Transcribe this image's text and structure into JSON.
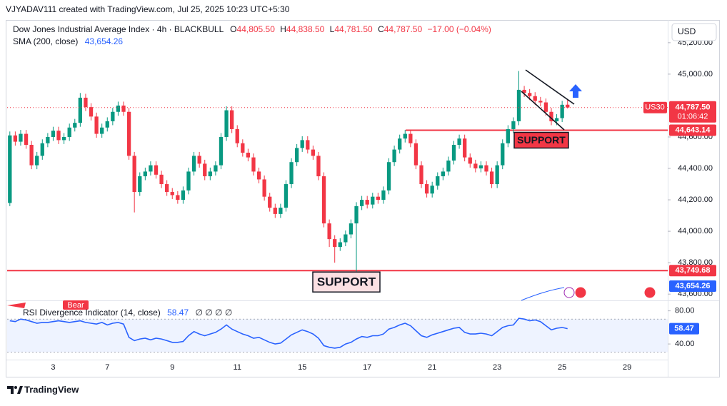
{
  "header": {
    "attribution": "VJYADAV111 created with TradingView.com, Jul 25, 2025 10:23 UTC+5:30"
  },
  "chart_data": {
    "type": "candlestick",
    "title": "Dow Jones Industrial Average Index · 4h · BLACKBULL",
    "legend": {
      "open_label": "O",
      "open": "44,805.50",
      "high_label": "H",
      "high": "44,838.50",
      "low_label": "L",
      "low": "44,781.50",
      "close_label": "C",
      "close": "44,787.50",
      "change": "−17.00 (−0.04%)"
    },
    "sma": {
      "name": "SMA (200, close)",
      "value_label": "43,654.26",
      "color": "#2962ff"
    },
    "categories": [
      null,
      null,
      null,
      null,
      null,
      null,
      null,
      null,
      "3",
      null,
      null,
      null,
      null,
      null,
      null,
      null,
      null,
      null,
      "7",
      null,
      null,
      null,
      null,
      null,
      null,
      null,
      null,
      null,
      null,
      null,
      "9",
      null,
      null,
      null,
      null,
      null,
      null,
      null,
      null,
      null,
      null,
      null,
      "11",
      null,
      null,
      null,
      null,
      null,
      null,
      null,
      null,
      null,
      null,
      null,
      "15",
      null,
      null,
      null,
      null,
      null,
      null,
      null,
      null,
      null,
      null,
      null,
      "17",
      null,
      null,
      null,
      null,
      null,
      null,
      null,
      null,
      null,
      null,
      null,
      "21",
      null,
      null,
      null,
      null,
      null,
      null,
      null,
      null,
      null,
      null,
      null,
      "23",
      null,
      null,
      null,
      null,
      null,
      null,
      null,
      null,
      null,
      null,
      null,
      "25",
      null,
      null,
      null,
      null,
      null,
      null,
      null,
      null,
      null,
      null,
      null,
      "29",
      null,
      null,
      null,
      null,
      null,
      null,
      null
    ],
    "open": [
      44180,
      44610,
      44570,
      44620,
      44550,
      44420,
      44480,
      44560,
      44600,
      44640,
      44580,
      44600,
      44660,
      44690,
      44850,
      44790,
      44730,
      44620,
      44660,
      44700,
      44760,
      44800,
      44760,
      44480,
      44250,
      44350,
      44380,
      44420,
      44360,
      44300,
      44250,
      44230,
      44200,
      44260,
      44380,
      44480,
      44430,
      44350,
      44380,
      44420,
      44600,
      44770,
      44650,
      44560,
      44500,
      44470,
      44380,
      44330,
      44220,
      44150,
      44110,
      44150,
      44300,
      44440,
      44530,
      44580,
      44520,
      44480,
      44350,
      44050,
      43950,
      43900,
      43930,
      43980,
      44050,
      44160,
      44200,
      44170,
      44220,
      44200,
      44260,
      44440,
      44520,
      44590,
      44620,
      44560,
      44420,
      44300,
      44240,
      44290,
      44350,
      44380,
      44450,
      44550,
      44590,
      44470,
      44430,
      44400,
      44420,
      44380,
      44300,
      44420,
      44560,
      44650,
      44700,
      44900,
      44880,
      44860,
      44830,
      44820,
      44760,
      44700,
      44720,
      44805.5,
      null,
      null,
      null,
      null,
      null,
      null,
      null,
      null,
      null,
      null,
      null,
      null,
      null,
      null,
      null,
      null,
      null,
      null
    ],
    "high": [
      44635,
      44635,
      44645,
      44645,
      44575,
      44505,
      44585,
      44625,
      44665,
      44665,
      44625,
      44685,
      44715,
      44880,
      44875,
      44815,
      44755,
      44685,
      44725,
      44785,
      44825,
      44825,
      44785,
      44505,
      44375,
      44405,
      44445,
      44445,
      44385,
      44325,
      44275,
      44255,
      44285,
      44405,
      44505,
      44505,
      44455,
      44405,
      44445,
      44625,
      44795,
      44795,
      44675,
      44585,
      44525,
      44495,
      44405,
      44355,
      44245,
      44175,
      44175,
      44325,
      44465,
      44555,
      44605,
      44605,
      44545,
      44505,
      44375,
      44075,
      43975,
      43955,
      44005,
      44075,
      44185,
      44225,
      44225,
      44245,
      44245,
      44285,
      44465,
      44545,
      44615,
      44645,
      44645,
      44585,
      44445,
      44325,
      44315,
      44375,
      44405,
      44475,
      44575,
      44615,
      44615,
      44495,
      44455,
      44445,
      44445,
      44405,
      44445,
      44585,
      44675,
      44725,
      45020,
      44925,
      44905,
      44885,
      44855,
      44845,
      44785,
      44745,
      44830,
      44838.5,
      null,
      null,
      null,
      null,
      null,
      null,
      null,
      null,
      null,
      null,
      null,
      null,
      null,
      null,
      null,
      null,
      null,
      null
    ],
    "low": [
      44160,
      44545,
      44545,
      44525,
      44395,
      44395,
      44455,
      44535,
      44575,
      44555,
      44555,
      44575,
      44635,
      44665,
      44765,
      44705,
      44595,
      44595,
      44635,
      44675,
      44735,
      44735,
      44455,
      44120,
      44225,
      44325,
      44355,
      44335,
      44275,
      44225,
      44205,
      44175,
      44175,
      44235,
      44355,
      44405,
      44325,
      44325,
      44355,
      44395,
      44575,
      44625,
      44535,
      44475,
      44445,
      44355,
      44305,
      44195,
      44125,
      44085,
      44085,
      44125,
      44275,
      44415,
      44505,
      44495,
      44455,
      44325,
      44025,
      43900,
      43800,
      43875,
      43905,
      43955,
      43745,
      44135,
      44145,
      44145,
      44175,
      44175,
      44235,
      44415,
      44495,
      44565,
      44535,
      44395,
      44275,
      44215,
      44215,
      44265,
      44325,
      44355,
      44425,
      44525,
      44445,
      44405,
      44375,
      44375,
      44355,
      44275,
      44275,
      44395,
      44535,
      44625,
      44675,
      44855,
      44835,
      44805,
      44795,
      44735,
      44675,
      44675,
      44695,
      44781.5,
      null,
      null,
      null,
      null,
      null,
      null,
      null,
      null,
      null,
      null,
      null,
      null,
      null,
      null,
      null,
      null,
      null,
      null
    ],
    "close": [
      44610,
      44570,
      44620,
      44550,
      44420,
      44480,
      44560,
      44600,
      44640,
      44580,
      44600,
      44660,
      44690,
      44850,
      44790,
      44730,
      44620,
      44660,
      44700,
      44760,
      44800,
      44760,
      44480,
      44250,
      44350,
      44380,
      44420,
      44360,
      44300,
      44250,
      44230,
      44200,
      44260,
      44380,
      44480,
      44430,
      44350,
      44380,
      44420,
      44600,
      44770,
      44650,
      44560,
      44500,
      44470,
      44380,
      44330,
      44220,
      44150,
      44110,
      44150,
      44300,
      44440,
      44530,
      44580,
      44520,
      44480,
      44350,
      44050,
      43950,
      43900,
      43930,
      43980,
      44050,
      44160,
      44200,
      44170,
      44220,
      44200,
      44260,
      44440,
      44520,
      44590,
      44620,
      44560,
      44420,
      44300,
      44240,
      44290,
      44350,
      44380,
      44450,
      44550,
      44590,
      44470,
      44430,
      44400,
      44420,
      44380,
      44300,
      44420,
      44560,
      44650,
      44700,
      44900,
      44880,
      44860,
      44830,
      44820,
      44760,
      44700,
      44720,
      44805,
      44787.5,
      null,
      null,
      null,
      null,
      null,
      null,
      null,
      null,
      null,
      null,
      null,
      null,
      null,
      null,
      null,
      null,
      null,
      null
    ],
    "up_color": "#089981",
    "down_color": "#f23645",
    "ylim": [
      43560,
      45440
    ],
    "yticks": [
      {
        "value": 45200,
        "label": "45,200.00"
      },
      {
        "value": 45000,
        "label": "45,000.00"
      },
      {
        "value": 44600,
        "label": "44,600.00"
      },
      {
        "value": 44400,
        "label": "44,400.00"
      },
      {
        "value": 44200,
        "label": "44,200.00"
      },
      {
        "value": 44000,
        "label": "44,000.00"
      },
      {
        "value": 43800,
        "label": "43,800.00"
      },
      {
        "value": 43600,
        "label": "43,600.00"
      }
    ],
    "grid": false,
    "symbol": "US30",
    "last_price_label": "44,787.50",
    "countdown": "01:06:42",
    "levels": [
      {
        "value": 44643.14,
        "label": "44,643.14",
        "color": "#f23645"
      },
      {
        "value": 43749.68,
        "label": "43,749.68",
        "color": "#f23645"
      }
    ],
    "annotations": [
      "SUPPORT",
      "SUPPORT"
    ],
    "currency": "USD",
    "rsi": {
      "type": "line",
      "name": "RSI Divergence Indicator (14, close)",
      "flags": "∅ ∅ ∅ ∅",
      "signal": "Bear",
      "color": "#2962ff",
      "values": [
        68,
        67,
        70,
        69,
        67,
        65,
        66,
        66,
        67,
        68,
        67,
        66,
        67,
        68,
        66,
        65,
        64,
        66,
        63,
        65,
        66,
        64,
        48,
        44,
        46,
        47,
        45,
        47,
        46,
        44,
        42,
        42,
        43,
        50,
        55,
        52,
        50,
        52,
        54,
        58,
        63,
        58,
        55,
        52,
        50,
        47,
        48,
        45,
        42,
        40,
        41,
        46,
        51,
        54,
        57,
        55,
        52,
        47,
        38,
        36,
        35,
        36,
        40,
        42,
        46,
        49,
        48,
        50,
        50,
        52,
        58,
        60,
        63,
        65,
        62,
        56,
        50,
        48,
        51,
        53,
        55,
        57,
        59,
        60,
        54,
        52,
        52,
        53,
        52,
        50,
        55,
        60,
        62,
        63,
        71,
        70,
        68,
        69,
        67,
        62,
        57,
        59,
        60,
        58.47,
        null,
        null,
        null,
        null,
        null,
        null,
        null,
        null,
        null,
        null,
        null,
        null,
        null,
        null,
        null,
        null,
        null,
        null
      ],
      "ylim": [
        22,
        90
      ],
      "yticks": [
        {
          "value": 80,
          "label": "80.00"
        },
        {
          "value": 40,
          "label": "40.00"
        }
      ],
      "band": [
        30,
        70
      ]
    }
  },
  "footer": {
    "brand": "TradingView"
  }
}
